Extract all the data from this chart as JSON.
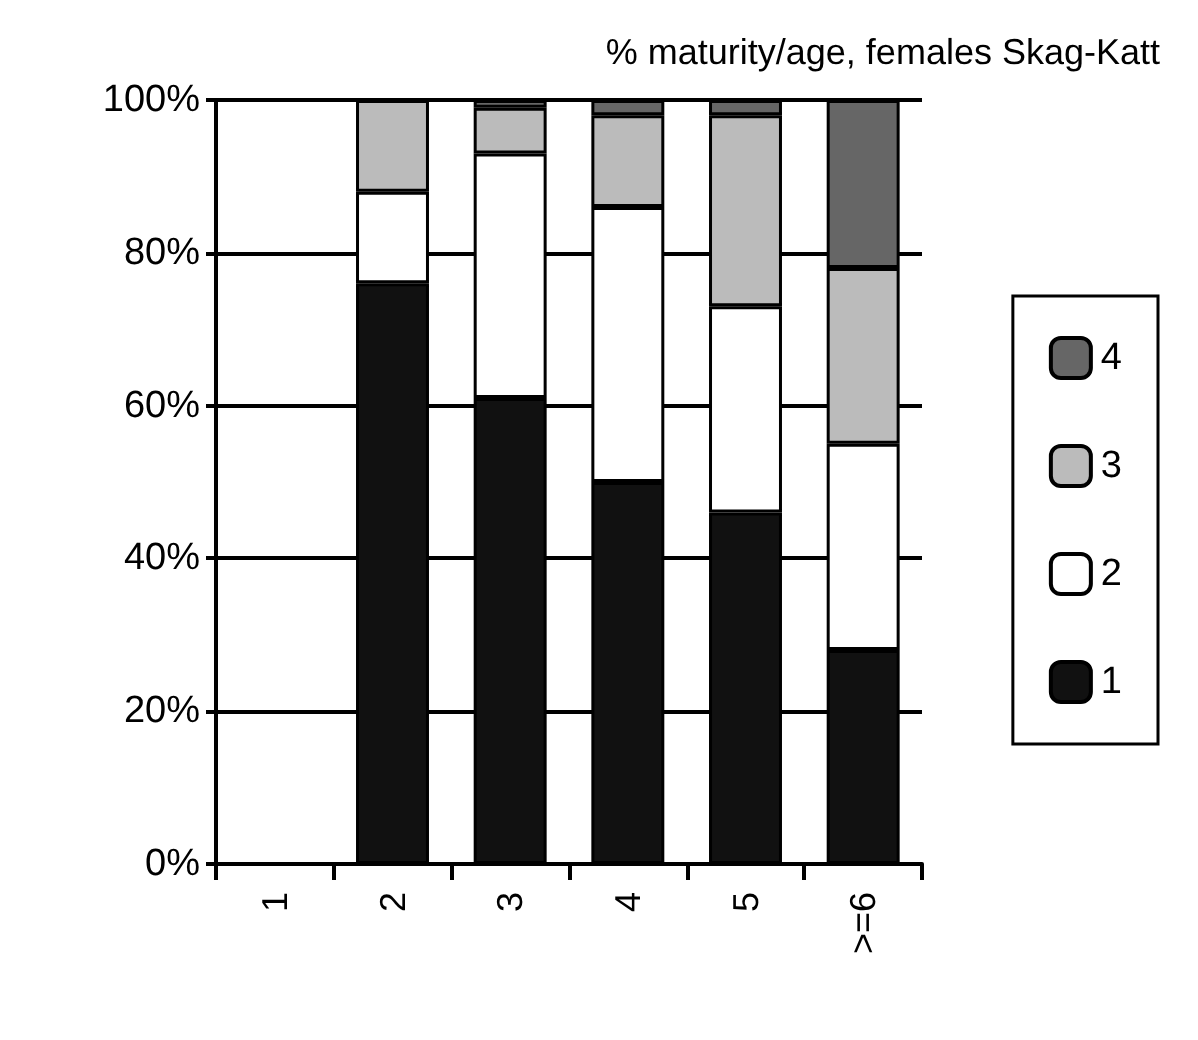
{
  "chart_data": {
    "type": "bar",
    "title": "% maturity/age, females Skag-Katt",
    "stacked": true,
    "categories": [
      "1",
      "2",
      "3",
      "4",
      "5",
      ">=6"
    ],
    "series": [
      {
        "name": "1",
        "color": "#111111",
        "values": [
          0,
          76,
          61,
          50,
          46,
          28
        ]
      },
      {
        "name": "2",
        "color": "#ffffff",
        "values": [
          0,
          12,
          32,
          36,
          27,
          27
        ]
      },
      {
        "name": "3",
        "color": "#bbbbbb",
        "values": [
          0,
          12,
          6,
          12,
          25,
          23
        ]
      },
      {
        "name": "4",
        "color": "#666666",
        "values": [
          0,
          0,
          1,
          2,
          2,
          22
        ]
      }
    ],
    "ylim": [
      0,
      100
    ],
    "yticks": [
      {
        "value": 0,
        "label": "0%"
      },
      {
        "value": 20,
        "label": "20%"
      },
      {
        "value": 40,
        "label": "40%"
      },
      {
        "value": 60,
        "label": "60%"
      },
      {
        "value": 80,
        "label": "80%"
      },
      {
        "value": 100,
        "label": "100%"
      }
    ],
    "grid": "y",
    "legend": "right"
  }
}
